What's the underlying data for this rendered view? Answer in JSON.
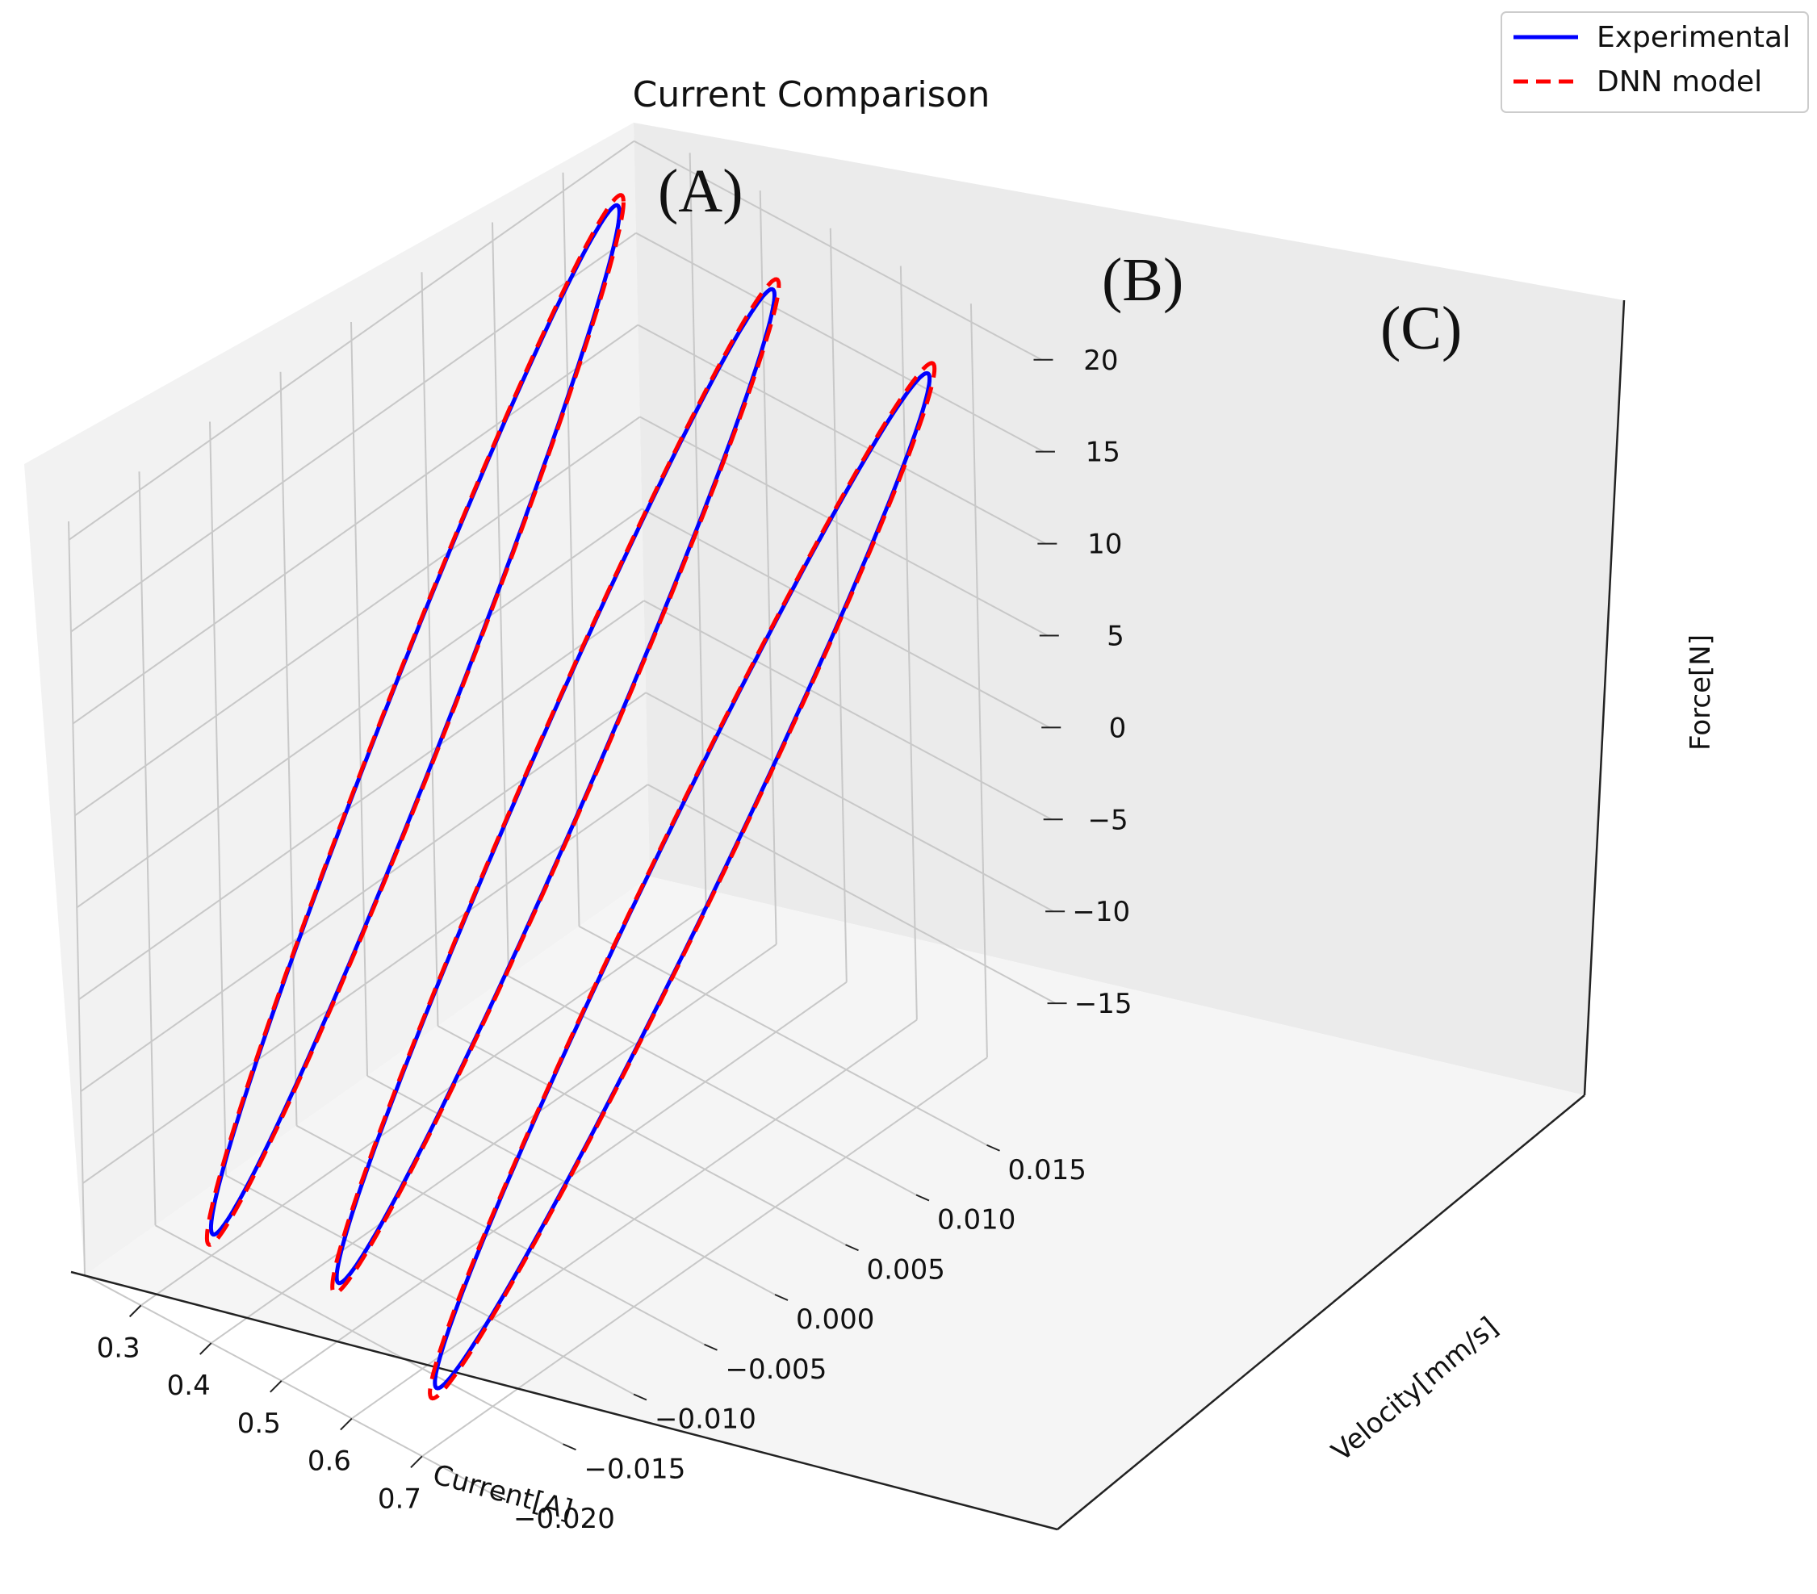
{
  "chart_data": {
    "type": "line",
    "projection": "3d",
    "title": "Current Comparison",
    "xlabel": "Current[A]",
    "ylabel": "Velocity[mm/s]",
    "zlabel": "Force[N]",
    "xlim": [
      0.22,
      0.8
    ],
    "ylim": [
      -0.02,
      0.02
    ],
    "zlim": [
      -20,
      21
    ],
    "xticks": [
      "0.3",
      "0.4",
      "0.5",
      "0.6",
      "0.7"
    ],
    "yticks": [
      "−0.020",
      "−0.015",
      "−0.010",
      "−0.005",
      "0.000",
      "0.005",
      "0.010",
      "0.015"
    ],
    "zticks": [
      "−15",
      "−10",
      "−5",
      "0",
      "5",
      "10",
      "15",
      "20"
    ],
    "grid": true,
    "legend_position": "top-right",
    "series": [
      {
        "name": "Experimental",
        "color": "#0000ff",
        "style": "solid"
      },
      {
        "name": "DNN model",
        "color": "#ff0000",
        "style": "dashed"
      }
    ],
    "loops": [
      {
        "label": "(A)",
        "current": 0.3,
        "vel_range": [
          -0.015,
          0.015
        ],
        "force_range": [
          -19,
          21
        ]
      },
      {
        "label": "(B)",
        "current": 0.5,
        "vel_range": [
          -0.016,
          0.016
        ],
        "force_range": [
          -17,
          20
        ]
      },
      {
        "label": "(C)",
        "current": 0.7,
        "vel_range": [
          -0.019,
          0.017
        ],
        "force_range": [
          -17,
          19
        ]
      }
    ]
  }
}
